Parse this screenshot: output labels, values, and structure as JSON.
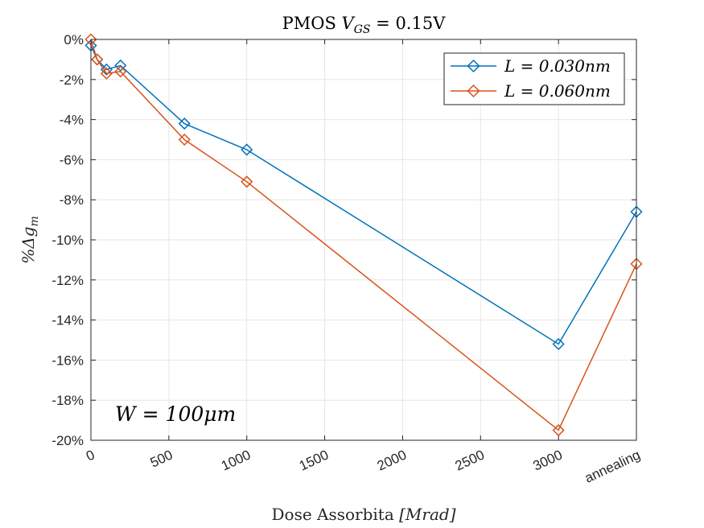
{
  "chart_data": {
    "type": "line",
    "title_prefix": "PMOS ",
    "title_math": "V",
    "title_sub": "GS",
    "title_suffix": " = 0.15V",
    "xlabel_text": "Dose Assorbita ",
    "xlabel_math": "[Mrad]",
    "ylabel_prefix": "%Δg",
    "ylabel_sub": "m",
    "annotation_math": "W = 100μm",
    "x_ticks": [
      "0",
      "500",
      "1000",
      "1500",
      "2000",
      "2500",
      "3000",
      "annealing"
    ],
    "x_tick_values": [
      0,
      500,
      1000,
      1500,
      2000,
      2500,
      3000,
      3500
    ],
    "y_ticks": [
      "0%",
      "-2%",
      "-4%",
      "-6%",
      "-8%",
      "-10%",
      "-12%",
      "-14%",
      "-16%",
      "-18%",
      "-20%"
    ],
    "y_tick_values": [
      0,
      -2,
      -4,
      -6,
      -8,
      -10,
      -12,
      -14,
      -16,
      -18,
      -20
    ],
    "xlim": [
      0,
      3500
    ],
    "ylim": [
      -20,
      0
    ],
    "grid": true,
    "legend_position": "top-right",
    "series": [
      {
        "name": "L = 0.030nm",
        "color": "#0072BD",
        "marker": "diamond",
        "x": [
          0,
          40,
          100,
          190,
          600,
          1000,
          3000,
          3500
        ],
        "y": [
          -0.3,
          -1.0,
          -1.5,
          -1.3,
          -4.2,
          -5.5,
          -15.2,
          -8.6
        ]
      },
      {
        "name": "L = 0.060nm",
        "color": "#D95319",
        "marker": "diamond",
        "x": [
          0,
          40,
          100,
          190,
          600,
          1000,
          3000,
          3500
        ],
        "y": [
          0.0,
          -1.0,
          -1.7,
          -1.6,
          -5.0,
          -7.1,
          -19.5,
          -11.2
        ]
      }
    ]
  }
}
